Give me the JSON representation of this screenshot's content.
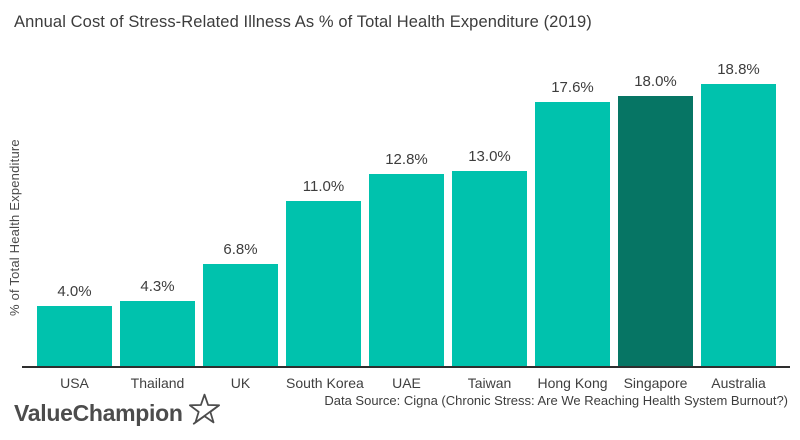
{
  "title": "Annual Cost of Stress-Related Illness As % of Total Health Expenditure (2019)",
  "chart_data": {
    "type": "bar",
    "title": "Annual Cost of Stress-Related Illness As % of Total Health Expenditure (2019)",
    "categories": [
      "USA",
      "Thailand",
      "UK",
      "South Korea",
      "UAE",
      "Taiwan",
      "Hong Kong",
      "Singapore",
      "Australia"
    ],
    "values": [
      4.0,
      4.3,
      6.8,
      11.0,
      12.8,
      13.0,
      17.6,
      18.0,
      18.8
    ],
    "value_labels": [
      "4.0%",
      "4.3%",
      "6.8%",
      "11.0%",
      "12.8%",
      "13.0%",
      "17.6%",
      "18.0%",
      "18.8%"
    ],
    "xlabel": "",
    "ylabel": "% of Total Health Expenditure",
    "ylim": [
      0,
      20
    ],
    "grid": false,
    "legend": false,
    "bar_color": "#00c2ad",
    "highlight_index": 7,
    "highlight_color": "#067564",
    "highlighted_category": "Singapore"
  },
  "footer": {
    "brand": "ValueChampion",
    "brand_icon": "star-icon",
    "source": "Data Source: Cigna (Chronic Stress: Are We Reaching Health System Burnout?)"
  }
}
